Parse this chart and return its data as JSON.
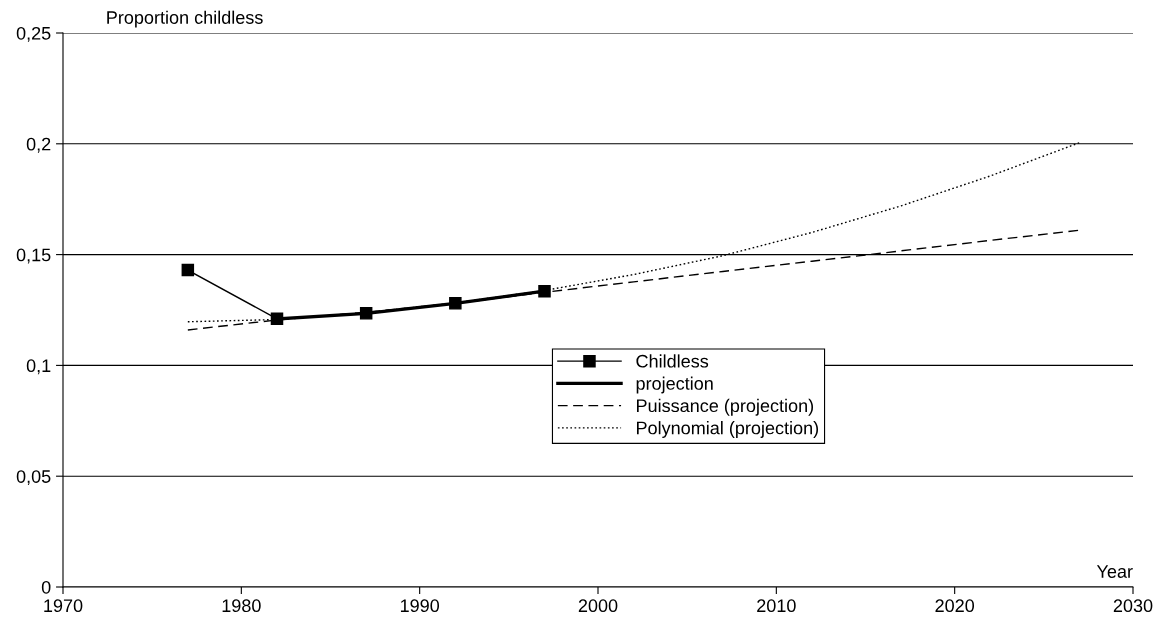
{
  "chart_data": {
    "type": "line",
    "xlabel": "Year",
    "ylabel": "Proportion childless",
    "xlim": [
      1970,
      2030
    ],
    "xticks": [
      1970,
      1980,
      1990,
      2000,
      2010,
      2020,
      2030
    ],
    "ylim": [
      0,
      0.25
    ],
    "yticks": [
      {
        "value": 0,
        "label": "0"
      },
      {
        "value": 0.05,
        "label": "0,05"
      },
      {
        "value": 0.1,
        "label": "0,1"
      },
      {
        "value": 0.15,
        "label": "0,15"
      },
      {
        "value": 0.2,
        "label": "0,2"
      },
      {
        "value": 0.25,
        "label": "0,25"
      }
    ],
    "grid": "y",
    "legend": "center",
    "series": [
      {
        "name": "Childless",
        "color": "#000000",
        "marker": "square",
        "line_style": "solid",
        "x": [
          1977,
          1982,
          1987,
          1992,
          1997
        ],
        "values": [
          0.143,
          0.121,
          0.1235,
          0.128,
          0.1335
        ]
      },
      {
        "name": "projection",
        "color": "#000000",
        "marker": "none",
        "line_style": "solid",
        "x": [
          1982,
          1987,
          1992,
          1997
        ],
        "values": [
          0.121,
          0.1235,
          0.128,
          0.1335
        ]
      },
      {
        "name": "Puissance (projection)",
        "color": "#000000",
        "marker": "none",
        "line_style": "dashed",
        "x": [
          1977,
          1982,
          1987,
          1992,
          1997,
          2002,
          2007,
          2012,
          2017,
          2022,
          2027
        ],
        "values": [
          0.116,
          0.1205,
          0.124,
          0.128,
          0.133,
          0.1377,
          0.1424,
          0.147,
          0.1517,
          0.1564,
          0.161
        ]
      },
      {
        "name": "Polynomial (projection)",
        "color": "#000000",
        "marker": "none",
        "line_style": "dotted",
        "x": [
          1977,
          1982,
          1987,
          1992,
          1997,
          2002,
          2007,
          2012,
          2017,
          2022,
          2027
        ],
        "values": [
          0.1197,
          0.1207,
          0.1238,
          0.1282,
          0.1338,
          0.141,
          0.1495,
          0.16,
          0.172,
          0.1855,
          0.2005
        ]
      }
    ]
  }
}
